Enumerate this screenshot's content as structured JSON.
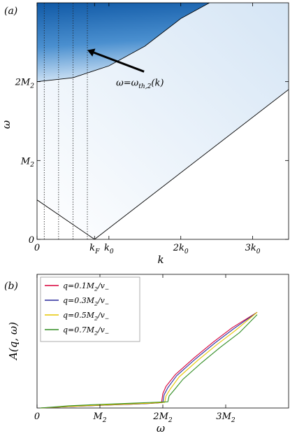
{
  "chart_data": [
    {
      "type": "heatmap",
      "panel_label": "(a)",
      "xlabel": "k",
      "ylabel": "ω",
      "x_ticks": [
        {
          "value": 0,
          "label": "0"
        },
        {
          "value": 0.8,
          "label": "k_F"
        },
        {
          "value": 1,
          "label": "k_0"
        },
        {
          "value": 2,
          "label": "2k_0"
        },
        {
          "value": 3,
          "label": "3k_0"
        }
      ],
      "y_ticks": [
        {
          "value": 0,
          "label": "0"
        },
        {
          "value": 1,
          "label": "M_2"
        },
        {
          "value": 2,
          "label": "2M_2"
        }
      ],
      "xlim": [
        0,
        3.5
      ],
      "ylim": [
        0,
        3.0
      ],
      "annotation": {
        "text": "ω=ω_th,2(k)",
        "x": 1.1,
        "y": 1.95,
        "arrow_to": [
          0.7,
          2.4
        ]
      },
      "vertical_dotted_lines_x": [
        0.1,
        0.3,
        0.5,
        0.7
      ],
      "curves": [
        {
          "name": "threshold",
          "points": [
            [
              0,
              2.0
            ],
            [
              0.5,
              2.05
            ],
            [
              1.0,
              2.2
            ],
            [
              1.5,
              2.45
            ],
            [
              2.0,
              2.8
            ],
            [
              2.4,
              3.0
            ]
          ]
        },
        {
          "name": "lower-left",
          "points": [
            [
              0,
              0.5
            ],
            [
              0.8,
              0
            ]
          ]
        },
        {
          "name": "lower-right",
          "points": [
            [
              0.8,
              0
            ],
            [
              3.5,
              1.9
            ]
          ]
        }
      ]
    },
    {
      "type": "line",
      "panel_label": "(b)",
      "xlabel": "ω",
      "ylabel": "A(q, ω)",
      "x_ticks": [
        {
          "value": 0,
          "label": "0"
        },
        {
          "value": 1,
          "label": "M_2"
        },
        {
          "value": 2,
          "label": "2M_2"
        },
        {
          "value": 3,
          "label": "3M_2"
        }
      ],
      "xlim": [
        0,
        4.0
      ],
      "ylim": [
        0,
        1.0
      ],
      "legend_position": "top-left",
      "series": [
        {
          "name": "q=0.1M_2/v_−",
          "color": "#d8003a",
          "x": [
            0.05,
            0.5,
            1.0,
            1.5,
            1.8,
            1.98,
            2.0,
            2.05,
            2.2,
            2.5,
            2.8,
            3.1,
            3.5
          ],
          "y": [
            0.0,
            0.012,
            0.022,
            0.032,
            0.038,
            0.045,
            0.12,
            0.18,
            0.28,
            0.42,
            0.55,
            0.67,
            0.8
          ]
        },
        {
          "name": "q=0.3M_2/v_−",
          "color": "#2a2a9c",
          "x": [
            0.05,
            0.5,
            1.0,
            1.5,
            1.8,
            2.0,
            2.02,
            2.08,
            2.22,
            2.52,
            2.82,
            3.12,
            3.5
          ],
          "y": [
            0.0,
            0.012,
            0.022,
            0.032,
            0.038,
            0.046,
            0.11,
            0.17,
            0.27,
            0.41,
            0.54,
            0.66,
            0.8
          ]
        },
        {
          "name": "q=0.5M_2/v_−",
          "color": "#e6c600",
          "x": [
            0.05,
            0.5,
            1.0,
            1.5,
            1.8,
            2.03,
            2.05,
            2.12,
            2.26,
            2.56,
            2.86,
            3.16,
            3.5
          ],
          "y": [
            0.0,
            0.013,
            0.024,
            0.034,
            0.04,
            0.048,
            0.1,
            0.16,
            0.26,
            0.4,
            0.53,
            0.65,
            0.8
          ]
        },
        {
          "name": "q=0.7M_2/v_−",
          "color": "#2e8b20",
          "x": [
            0.05,
            0.5,
            1.0,
            1.5,
            1.8,
            2.08,
            2.1,
            2.18,
            2.32,
            2.62,
            2.92,
            3.22,
            3.5
          ],
          "y": [
            0.0,
            0.018,
            0.03,
            0.04,
            0.046,
            0.052,
            0.1,
            0.15,
            0.24,
            0.38,
            0.51,
            0.63,
            0.78
          ]
        }
      ]
    }
  ]
}
